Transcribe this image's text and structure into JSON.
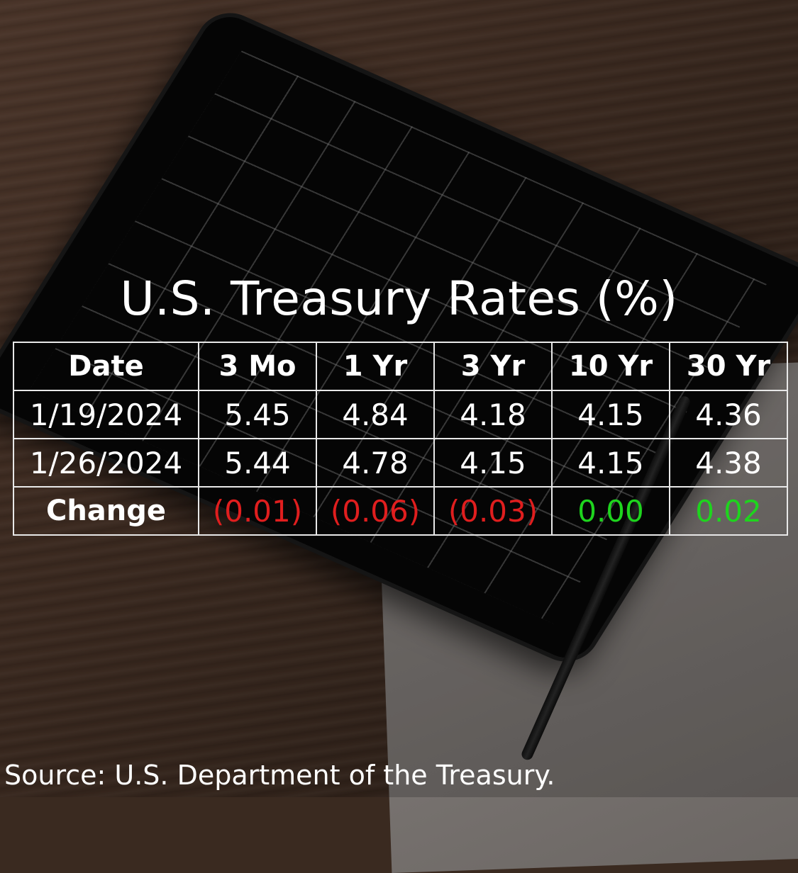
{
  "title": "U.S. Treasury Rates (%)",
  "source": "Source: U.S. Department of the Treasury.",
  "colors": {
    "negative": "#e01e1e",
    "positive": "#1ed41e",
    "text": "#ffffff"
  },
  "chart_data": {
    "type": "table",
    "title": "U.S. Treasury Rates (%)",
    "columns": [
      "Date",
      "3 Mo",
      "1 Yr",
      "3 Yr",
      "10 Yr",
      "30 Yr"
    ],
    "rows": [
      {
        "date": "1/19/2024",
        "values": [
          "5.45",
          "4.84",
          "4.18",
          "4.15",
          "4.36"
        ]
      },
      {
        "date": "1/26/2024",
        "values": [
          "5.44",
          "4.78",
          "4.15",
          "4.15",
          "4.38"
        ]
      },
      {
        "date": "Change",
        "values": [
          "(0.01)",
          "(0.06)",
          "(0.03)",
          "0.00",
          "0.02"
        ]
      }
    ],
    "change_signs": [
      "negative",
      "negative",
      "negative",
      "positive",
      "positive"
    ]
  }
}
